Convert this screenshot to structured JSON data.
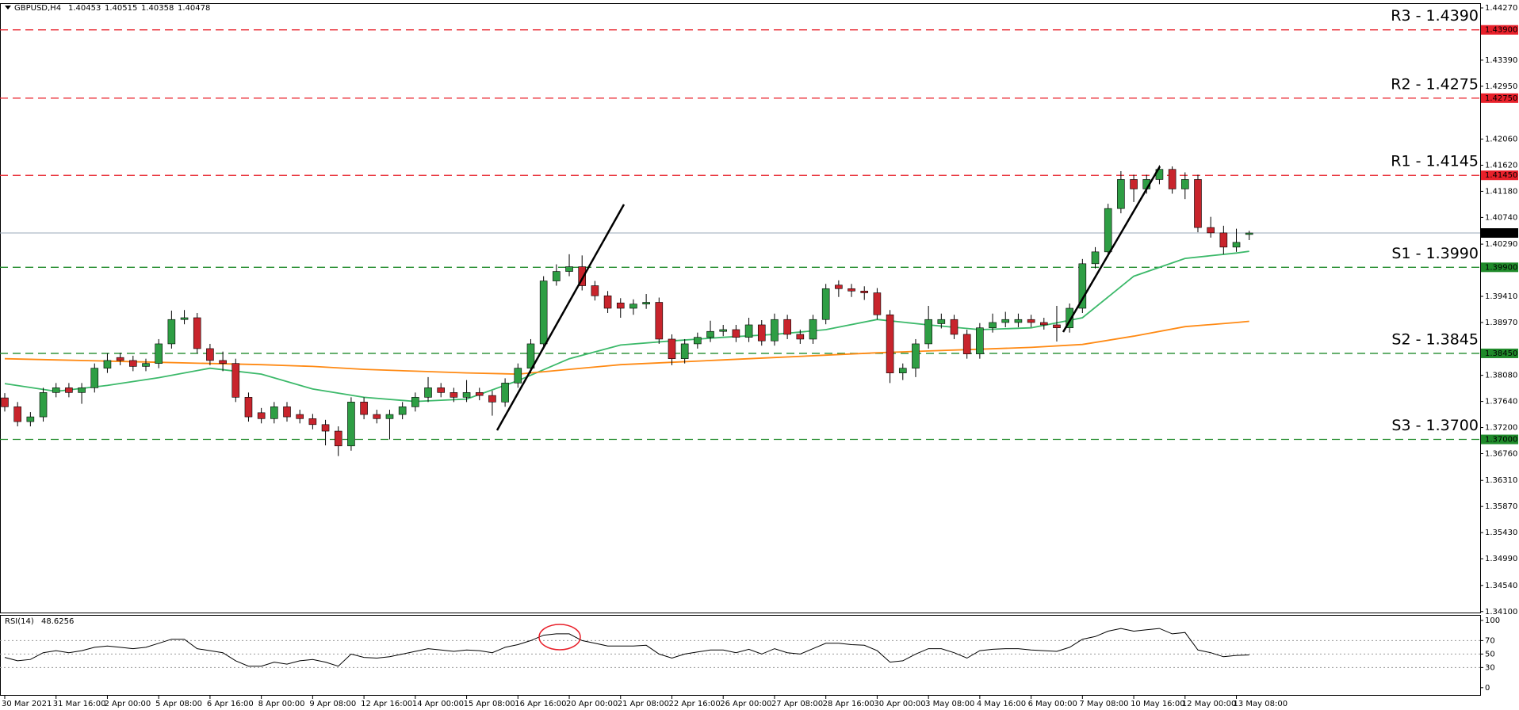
{
  "chart_data": [
    {
      "type": "candlestick",
      "symbol": "GBPUSD,H4",
      "open": [
        1.377,
        1.3755,
        1.373,
        1.3738,
        1.3779,
        1.3787,
        1.3779,
        1.3787,
        1.382,
        1.3838,
        1.3833,
        1.3823,
        1.3828,
        1.3861,
        1.3902,
        1.3905,
        1.3853,
        1.3833,
        1.3828,
        1.3771,
        1.3745,
        1.3735,
        1.3755,
        1.3742,
        1.3735,
        1.3725,
        1.3714,
        1.3689,
        1.3763,
        1.3742,
        1.3735,
        1.3742,
        1.3755,
        1.3771,
        1.3787,
        1.3779,
        1.3771,
        1.3779,
        1.3774,
        1.3763,
        1.3795,
        1.382,
        1.3861,
        1.3967,
        1.3983,
        1.3991,
        1.3959,
        1.3942,
        1.393,
        1.3921,
        1.3928,
        1.3931,
        1.3869,
        1.3836,
        1.3861,
        1.3872,
        1.3882,
        1.3885,
        1.3872,
        1.3893,
        1.3866,
        1.3902,
        1.3877,
        1.3869,
        1.3902,
        1.396,
        1.3954,
        1.395,
        1.3947,
        1.391,
        1.3812,
        1.382,
        1.3861,
        1.3895,
        1.3902,
        1.3877,
        1.3844,
        1.3888,
        1.3897,
        1.3897,
        1.3902,
        1.3897,
        1.3893,
        1.3888,
        1.3921,
        1.3996,
        1.4016,
        1.4089,
        1.4138,
        1.4122,
        1.4138,
        1.4155,
        1.4122,
        1.4138,
        1.4057,
        1.4048,
        1.4024,
        1.40453
      ],
      "high": [
        1.3778,
        1.3763,
        1.3746,
        1.3787,
        1.3795,
        1.3795,
        1.3795,
        1.3828,
        1.3845,
        1.3846,
        1.3841,
        1.3836,
        1.3869,
        1.3917,
        1.3918,
        1.3913,
        1.3861,
        1.3848,
        1.3836,
        1.3779,
        1.3753,
        1.3763,
        1.3763,
        1.375,
        1.3743,
        1.3733,
        1.3722,
        1.3771,
        1.3771,
        1.375,
        1.375,
        1.3763,
        1.3779,
        1.3805,
        1.3795,
        1.3787,
        1.38,
        1.3787,
        1.3782,
        1.3803,
        1.3828,
        1.3869,
        1.3975,
        1.3995,
        1.4012,
        1.401,
        1.3967,
        1.395,
        1.3938,
        1.3936,
        1.3945,
        1.3939,
        1.3877,
        1.3869,
        1.388,
        1.39,
        1.3893,
        1.3893,
        1.3905,
        1.3901,
        1.3912,
        1.391,
        1.3885,
        1.391,
        1.3962,
        1.3968,
        1.3962,
        1.3958,
        1.3955,
        1.3918,
        1.3828,
        1.3869,
        1.3925,
        1.3912,
        1.391,
        1.3885,
        1.3896,
        1.3912,
        1.3915,
        1.3912,
        1.391,
        1.3905,
        1.3925,
        1.3929,
        1.4004,
        1.4024,
        1.4097,
        1.4152,
        1.4146,
        1.4146,
        1.4162,
        1.416,
        1.415,
        1.4146,
        1.4075,
        1.406,
        1.4055,
        1.40515
      ],
      "low": [
        1.3747,
        1.3722,
        1.3722,
        1.373,
        1.3771,
        1.3771,
        1.376,
        1.3779,
        1.3812,
        1.3825,
        1.3815,
        1.3815,
        1.382,
        1.3853,
        1.3894,
        1.3845,
        1.3825,
        1.3815,
        1.3763,
        1.373,
        1.3727,
        1.3727,
        1.373,
        1.3727,
        1.3717,
        1.369,
        1.3672,
        1.3681,
        1.3734,
        1.3727,
        1.37,
        1.3734,
        1.3747,
        1.3763,
        1.3771,
        1.3763,
        1.3763,
        1.3766,
        1.374,
        1.3755,
        1.3787,
        1.3812,
        1.3853,
        1.3959,
        1.3975,
        1.3951,
        1.3934,
        1.3913,
        1.3905,
        1.391,
        1.392,
        1.3861,
        1.3825,
        1.3828,
        1.3853,
        1.3864,
        1.3874,
        1.3864,
        1.3864,
        1.3858,
        1.3858,
        1.3869,
        1.3861,
        1.3861,
        1.3894,
        1.394,
        1.394,
        1.3935,
        1.3902,
        1.3795,
        1.38,
        1.3805,
        1.3853,
        1.3887,
        1.3869,
        1.3836,
        1.3836,
        1.388,
        1.3889,
        1.3889,
        1.3889,
        1.3885,
        1.3865,
        1.388,
        1.3913,
        1.3988,
        1.4008,
        1.4081,
        1.41,
        1.4114,
        1.413,
        1.4114,
        1.4105,
        1.4049,
        1.404,
        1.4012,
        1.4016,
        1.40358
      ],
      "close": [
        1.3755,
        1.373,
        1.3738,
        1.3779,
        1.3787,
        1.3779,
        1.3787,
        1.382,
        1.3833,
        1.3833,
        1.3823,
        1.3828,
        1.3861,
        1.3902,
        1.3905,
        1.3853,
        1.3833,
        1.3828,
        1.3771,
        1.3738,
        1.3735,
        1.3755,
        1.3738,
        1.3735,
        1.3725,
        1.3714,
        1.3689,
        1.3763,
        1.3742,
        1.3735,
        1.3742,
        1.3755,
        1.3771,
        1.3787,
        1.3779,
        1.3771,
        1.3779,
        1.3774,
        1.3763,
        1.3795,
        1.382,
        1.3861,
        1.3967,
        1.3983,
        1.3991,
        1.3959,
        1.3942,
        1.3921,
        1.3921,
        1.3928,
        1.3931,
        1.3869,
        1.3836,
        1.3861,
        1.3872,
        1.3882,
        1.3885,
        1.3872,
        1.3893,
        1.3866,
        1.3902,
        1.3877,
        1.3869,
        1.3902,
        1.3954,
        1.3954,
        1.395,
        1.3947,
        1.391,
        1.3812,
        1.382,
        1.3861,
        1.3902,
        1.3902,
        1.3877,
        1.3844,
        1.3888,
        1.3897,
        1.3902,
        1.3902,
        1.3897,
        1.3893,
        1.3888,
        1.3921,
        1.3996,
        1.4016,
        1.4089,
        1.4138,
        1.4122,
        1.4138,
        1.4155,
        1.4122,
        1.4138,
        1.4057,
        1.4048,
        1.4024,
        1.4032,
        1.40478
      ],
      "up_color": "#2e9e44",
      "down_color": "#c8242c",
      "wick_color": "#000000",
      "price_line_color": "#9aaab8",
      "moving_averages": [
        {
          "color": "#3cb96a",
          "x": [
            0,
            4,
            8,
            12,
            16,
            20,
            24,
            28,
            32,
            36,
            40,
            44,
            48,
            52,
            56,
            60,
            64,
            68,
            72,
            76,
            80,
            84,
            88,
            92,
            96,
            97
          ],
          "values": [
            1.3794,
            1.3781,
            1.3791,
            1.3804,
            1.382,
            1.381,
            1.3785,
            1.3771,
            1.3764,
            1.3768,
            1.3799,
            1.3836,
            1.3859,
            1.3866,
            1.3872,
            1.3877,
            1.3885,
            1.3902,
            1.3893,
            1.3885,
            1.3888,
            1.3905,
            1.3975,
            1.4005,
            1.4014,
            1.4017
          ]
        },
        {
          "color": "#ff8a14",
          "x": [
            0,
            4,
            8,
            12,
            16,
            20,
            24,
            28,
            32,
            36,
            40,
            44,
            48,
            52,
            56,
            60,
            64,
            68,
            72,
            76,
            80,
            84,
            88,
            92,
            96,
            97
          ],
          "values": [
            1.3836,
            1.3834,
            1.3832,
            1.383,
            1.3828,
            1.3826,
            1.3823,
            1.3818,
            1.3815,
            1.3812,
            1.381,
            1.3818,
            1.3826,
            1.383,
            1.3834,
            1.3838,
            1.3842,
            1.3846,
            1.3849,
            1.3852,
            1.3855,
            1.386,
            1.3874,
            1.389,
            1.3897,
            1.3899
          ]
        }
      ],
      "levels": [
        {
          "name": "R3 - 1.4390",
          "value": 1.439,
          "label": "1.43900",
          "color": "#e8202a"
        },
        {
          "name": "R2 - 1.4275",
          "value": 1.4275,
          "label": "1.42750",
          "color": "#e8202a"
        },
        {
          "name": "R1 - 1.4145",
          "value": 1.4145,
          "label": "1.41450",
          "color": "#e8202a"
        },
        {
          "name": "S1 - 1.3990",
          "value": 1.399,
          "label": "1.39900",
          "color": "#1f8a2a"
        },
        {
          "name": "S2 - 1.3845",
          "value": 1.3845,
          "label": "1.38450",
          "color": "#1f8a2a"
        },
        {
          "name": "S3 - 1.3700",
          "value": 1.37,
          "label": "1.37000",
          "color": "#1f8a2a"
        }
      ],
      "xlim": [
        -0.37,
        115
      ],
      "ylim": [
        1.3407,
        1.4435
      ],
      "yticks": [
        {
          "value": 1.4427,
          "label": "1.44270"
        },
        {
          "value": 1.4339,
          "label": "1.43390"
        },
        {
          "value": 1.4295,
          "label": "1.42950"
        },
        {
          "value": 1.4206,
          "label": "1.42060"
        },
        {
          "value": 1.4162,
          "label": "1.41620"
        },
        {
          "value": 1.4118,
          "label": "1.41180"
        },
        {
          "value": 1.4074,
          "label": "1.40740"
        },
        {
          "value": 1.4029,
          "label": "1.40290"
        },
        {
          "value": 1.3941,
          "label": "1.39410"
        },
        {
          "value": 1.3897,
          "label": "1.38970"
        },
        {
          "value": 1.3808,
          "label": "1.38080"
        },
        {
          "value": 1.3764,
          "label": "1.37640"
        },
        {
          "value": 1.372,
          "label": "1.37200"
        },
        {
          "value": 1.3676,
          "label": "1.36760"
        },
        {
          "value": 1.3631,
          "label": "1.36310"
        },
        {
          "value": 1.3587,
          "label": "1.35870"
        },
        {
          "value": 1.3543,
          "label": "1.35430"
        },
        {
          "value": 1.3499,
          "label": "1.34990"
        },
        {
          "value": 1.3454,
          "label": "1.34540"
        },
        {
          "value": 1.341,
          "label": "1.34100"
        }
      ]
    },
    {
      "type": "line",
      "title": "RSI(14)",
      "color": "#000000",
      "values": [
        45,
        40,
        42,
        52,
        55,
        52,
        55,
        60,
        62,
        60,
        58,
        60,
        66,
        72,
        72,
        58,
        55,
        52,
        40,
        32,
        32,
        38,
        35,
        40,
        42,
        38,
        32,
        50,
        45,
        44,
        46,
        50,
        54,
        58,
        56,
        54,
        56,
        55,
        52,
        60,
        64,
        70,
        78,
        80,
        80,
        70,
        66,
        62,
        62,
        62,
        63,
        50,
        44,
        50,
        53,
        56,
        56,
        52,
        57,
        50,
        58,
        52,
        50,
        58,
        66,
        66,
        64,
        63,
        55,
        38,
        40,
        50,
        58,
        58,
        52,
        44,
        55,
        57,
        58,
        58,
        56,
        55,
        54,
        60,
        72,
        76,
        84,
        88,
        84,
        86,
        88,
        80,
        82,
        56,
        52,
        46,
        48,
        48.6256
      ],
      "xlim": [
        -0.37,
        115
      ],
      "ylim": [
        -12,
        107
      ],
      "yticks": [
        100,
        70,
        50,
        30,
        0
      ],
      "levels": [
        70,
        50,
        30
      ],
      "xticks": [
        {
          "value": 0,
          "label": "30 Mar 2021"
        },
        {
          "value": 4,
          "label": "31 Mar 16:00"
        },
        {
          "value": 8,
          "label": "2 Apr 00:00"
        },
        {
          "value": 12,
          "label": "5 Apr 08:00"
        },
        {
          "value": 16,
          "label": "6 Apr 16:00"
        },
        {
          "value": 20,
          "label": "8 Apr 00:00"
        },
        {
          "value": 24,
          "label": "9 Apr 08:00"
        },
        {
          "value": 28,
          "label": "12 Apr 16:00"
        },
        {
          "value": 32,
          "label": "14 Apr 00:00"
        },
        {
          "value": 36,
          "label": "15 Apr 08:00"
        },
        {
          "value": 40,
          "label": "16 Apr 16:00"
        },
        {
          "value": 44,
          "label": "20 Apr 00:00"
        },
        {
          "value": 48,
          "label": "21 Apr 08:00"
        },
        {
          "value": 52,
          "label": "22 Apr 16:00"
        },
        {
          "value": 56,
          "label": "26 Apr 00:00"
        },
        {
          "value": 60,
          "label": "27 Apr 08:00"
        },
        {
          "value": 64,
          "label": "28 Apr 16:00"
        },
        {
          "value": 68,
          "label": "30 Apr 00:00"
        },
        {
          "value": 72,
          "label": "3 May 08:00"
        },
        {
          "value": 76,
          "label": "4 May 16:00"
        },
        {
          "value": 80,
          "label": "6 May 00:00"
        },
        {
          "value": 84,
          "label": "7 May 08:00"
        },
        {
          "value": 88,
          "label": "10 May 16:00"
        },
        {
          "value": 92,
          "label": "12 May 00:00"
        },
        {
          "value": 96,
          "label": "13 May 08:00"
        }
      ]
    }
  ]
}
